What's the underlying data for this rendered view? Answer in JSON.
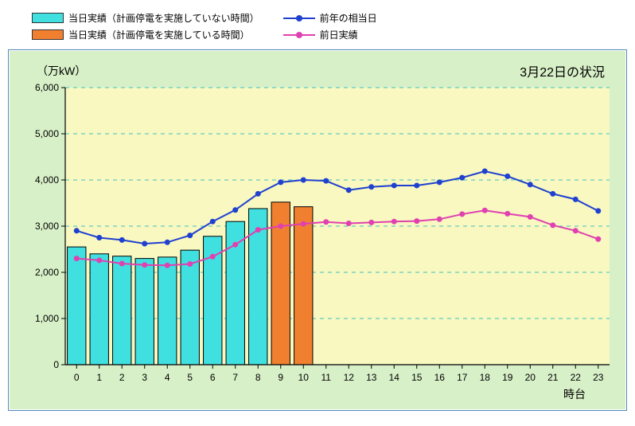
{
  "legend": {
    "bar_no_outage": {
      "label": "当日実績（計画停電を実施していない時間）",
      "color": "#40e0e0"
    },
    "bar_outage": {
      "label": "当日実績（計画停電を実施している時間）",
      "color": "#f08030"
    },
    "line_prev_year": {
      "label": "前年の相当日",
      "color": "#2040d0"
    },
    "line_prev_day": {
      "label": "前日実績",
      "color": "#e040b0"
    }
  },
  "chart": {
    "title": "3月22日の状況",
    "ylabel": "（万kW）",
    "xlabel": "時台",
    "background": "#d8f0c8",
    "plot_bg": "#f8f8c0",
    "grid_color": "#40c0c0",
    "axis_color": "#000000",
    "xlim": [
      -0.5,
      23.5
    ],
    "ylim": [
      0,
      6000
    ],
    "ytick_step": 1000,
    "x_categories": [
      0,
      1,
      2,
      3,
      4,
      5,
      6,
      7,
      8,
      9,
      10,
      11,
      12,
      13,
      14,
      15,
      16,
      17,
      18,
      19,
      20,
      21,
      22,
      23
    ],
    "bar_width": 0.82,
    "bars": [
      {
        "x": 0,
        "v": 2550,
        "c": "#40e0e0"
      },
      {
        "x": 1,
        "v": 2400,
        "c": "#40e0e0"
      },
      {
        "x": 2,
        "v": 2350,
        "c": "#40e0e0"
      },
      {
        "x": 3,
        "v": 2300,
        "c": "#40e0e0"
      },
      {
        "x": 4,
        "v": 2330,
        "c": "#40e0e0"
      },
      {
        "x": 5,
        "v": 2480,
        "c": "#40e0e0"
      },
      {
        "x": 6,
        "v": 2780,
        "c": "#40e0e0"
      },
      {
        "x": 7,
        "v": 3100,
        "c": "#40e0e0"
      },
      {
        "x": 8,
        "v": 3380,
        "c": "#40e0e0"
      },
      {
        "x": 9,
        "v": 3520,
        "c": "#f08030"
      },
      {
        "x": 10,
        "v": 3420,
        "c": "#f08030"
      }
    ],
    "line_prev_year": {
      "color": "#2040d0",
      "width": 2,
      "points": [
        2900,
        2750,
        2700,
        2620,
        2650,
        2800,
        3100,
        3350,
        3700,
        3950,
        4000,
        3980,
        3780,
        3850,
        3880,
        3880,
        3950,
        4050,
        4190,
        4080,
        3900,
        3700,
        3580,
        3330
      ]
    },
    "line_prev_day": {
      "color": "#e040b0",
      "width": 2,
      "points": [
        2300,
        2260,
        2190,
        2160,
        2150,
        2180,
        2340,
        2600,
        2920,
        3000,
        3050,
        3090,
        3060,
        3080,
        3100,
        3110,
        3150,
        3260,
        3340,
        3270,
        3200,
        3020,
        2900,
        2720
      ]
    }
  }
}
